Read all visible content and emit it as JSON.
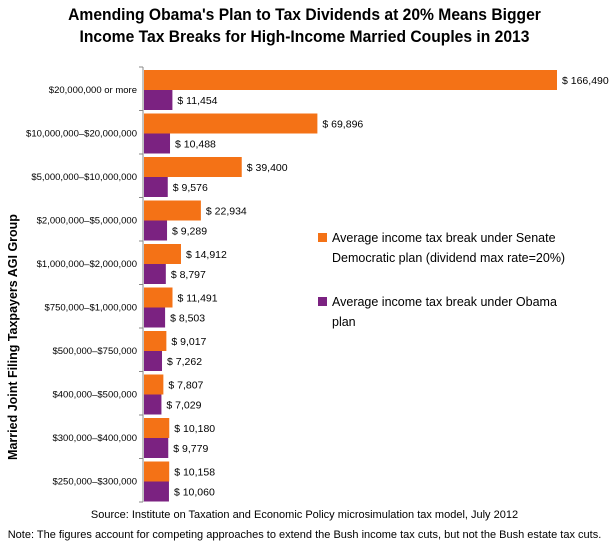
{
  "title_lines": [
    "Amending Obama's Plan to Tax Dividends at 20% Means Bigger",
    "Income Tax Breaks for High-Income Married Couples in 2013"
  ],
  "source": "Source: Institute on Taxation and Economic Policy microsimulation tax model, July 2012",
  "note": "Note: The figures account for competing approaches to extend the Bush income tax cuts, but not the Bush estate tax cuts.",
  "colors": {
    "senate": "#f47216",
    "obama": "#7b2281",
    "axis": "#888888"
  },
  "chart_data": {
    "type": "bar",
    "orientation": "horizontal",
    "ylabel": "Married Joint Filing Taxpayers AGI Group",
    "xlim": [
      0,
      166490
    ],
    "categories": [
      "$20,000,000 or more",
      "$10,000,000–$20,000,000",
      "$5,000,000–$10,000,000",
      "$2,000,000–$5,000,000",
      "$1,000,000–$2,000,000",
      "$750,000–$1,000,000",
      "$500,000–$750,000",
      "$400,000–$500,000",
      "$300,000–$400,000",
      "$250,000–$300,000"
    ],
    "series": [
      {
        "name": "Average income tax break under Senate Democratic plan (dividend max rate=20%)",
        "legend_lines": [
          "Average income tax break under Senate",
          "Democratic plan (dividend max rate=20%)"
        ],
        "values": [
          166490,
          69896,
          39400,
          22934,
          14912,
          11491,
          9017,
          7807,
          10180,
          10158
        ],
        "labels": [
          "$ 166,490",
          "$ 69,896",
          "$ 39,400",
          "$ 22,934",
          "$ 14,912",
          "$ 11,491",
          "$ 9,017",
          "$ 7,807",
          "$ 10,180",
          "$ 10,158"
        ]
      },
      {
        "name": "Average income tax break under Obama plan",
        "legend_lines": [
          "Average income tax break under Obama",
          "plan"
        ],
        "values": [
          11454,
          10488,
          9576,
          9289,
          8797,
          8503,
          7262,
          7029,
          9779,
          10060
        ],
        "labels": [
          "$ 11,454",
          "$ 10,488",
          "$ 9,576",
          "$ 9,289",
          "$ 8,797",
          "$ 8,503",
          "$ 7,262",
          "$ 7,029",
          "$ 9,779",
          "$ 10,060"
        ]
      }
    ],
    "legend_position": "right",
    "grid": false
  }
}
